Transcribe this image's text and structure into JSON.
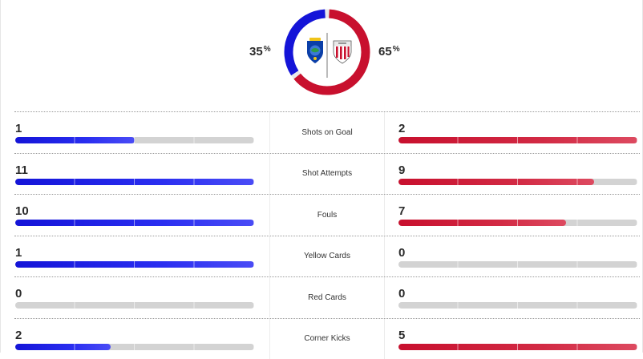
{
  "possession": {
    "home_pct": "35",
    "away_pct": "65",
    "pct_symbol": "%",
    "home_value": 0.35,
    "away_value": 0.65,
    "home_color": "#1414d8",
    "away_color": "#c8102e",
    "home_crest_icon": "getafe-crest-icon",
    "away_crest_icon": "athletic-bilbao-crest-icon"
  },
  "stats": [
    {
      "label": "Shots on Goal",
      "home": "1",
      "away": "2",
      "home_fill": 0.5,
      "away_fill": 1.0
    },
    {
      "label": "Shot Attempts",
      "home": "11",
      "away": "9",
      "home_fill": 1.0,
      "away_fill": 0.82
    },
    {
      "label": "Fouls",
      "home": "10",
      "away": "7",
      "home_fill": 1.0,
      "away_fill": 0.7
    },
    {
      "label": "Yellow Cards",
      "home": "1",
      "away": "0",
      "home_fill": 1.0,
      "away_fill": 0
    },
    {
      "label": "Red Cards",
      "home": "0",
      "away": "0",
      "home_fill": 0,
      "away_fill": 0
    },
    {
      "label": "Corner Kicks",
      "home": "2",
      "away": "5",
      "home_fill": 0.4,
      "away_fill": 1.0
    }
  ]
}
